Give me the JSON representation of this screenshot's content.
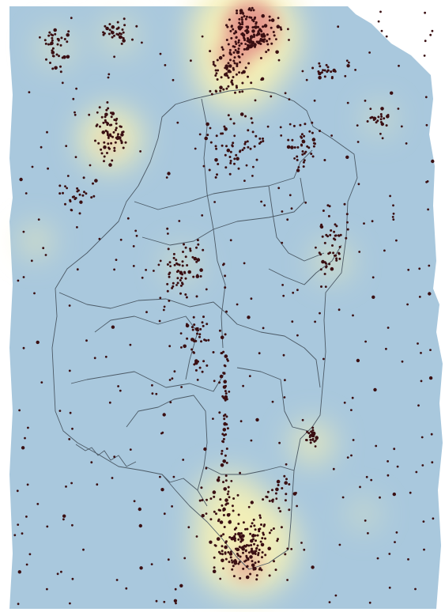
{
  "map": {
    "layers": [
      "density-heatmap",
      "point-locations",
      "district-boundaries"
    ],
    "colors": {
      "background": "#ffffff",
      "heat_low": "#a9c8dd",
      "heat_mid": "#f4f0b6",
      "heat_high": "#e5938a",
      "point": "#3a0f12",
      "boundary": "#4c5a66"
    },
    "legend": null,
    "labels": []
  }
}
